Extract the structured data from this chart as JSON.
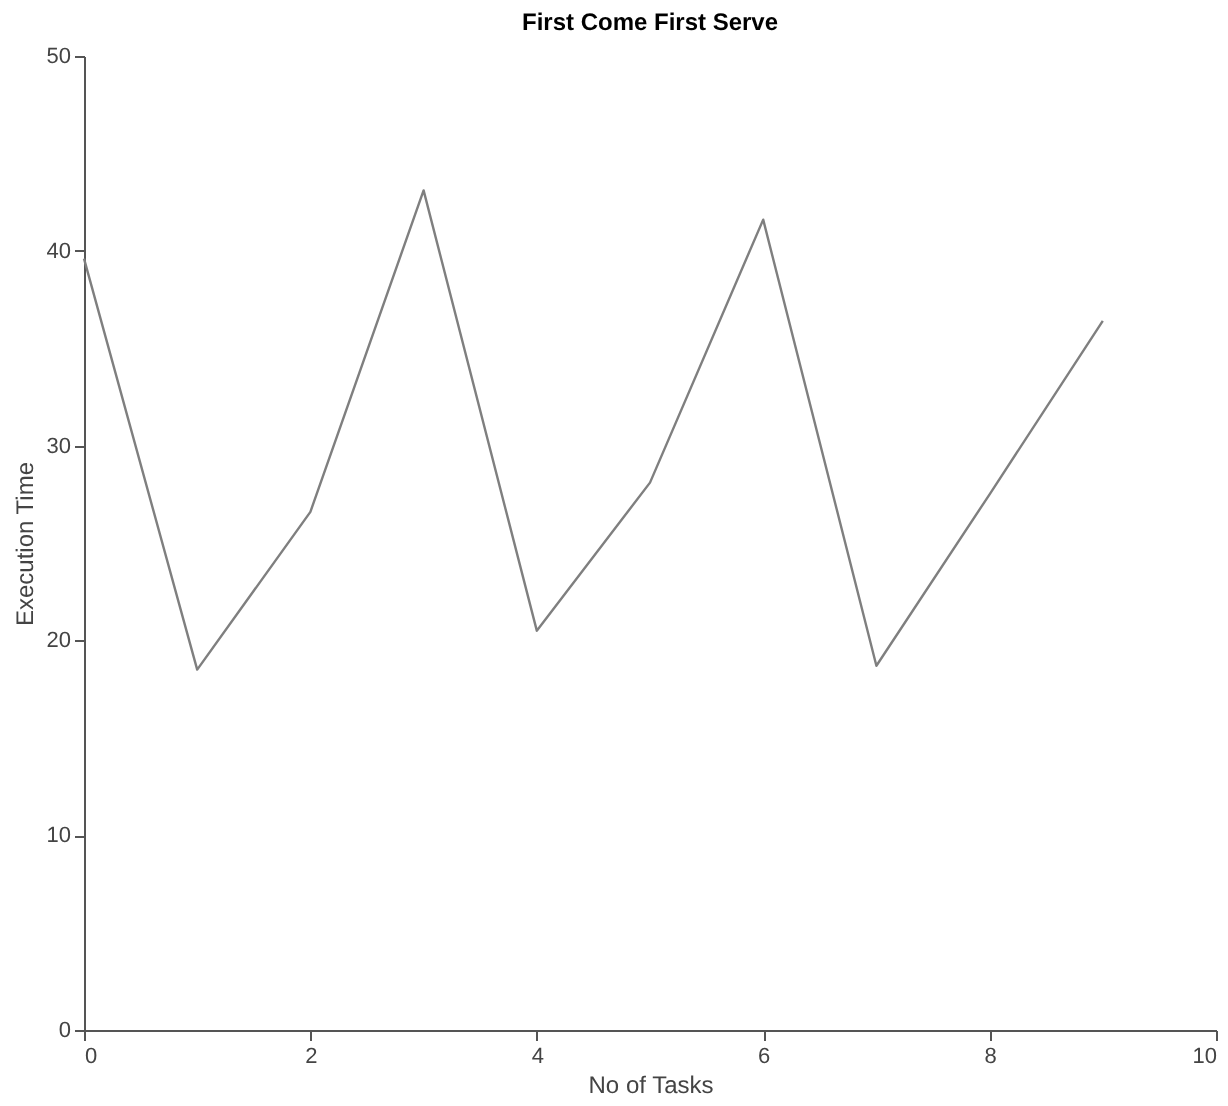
{
  "chart_data": {
    "type": "line",
    "title": "First Come First Serve",
    "xlabel": "No of Tasks",
    "ylabel": "Execution Time",
    "x": [
      0,
      1,
      2,
      3,
      4,
      5,
      6,
      7,
      8,
      9
    ],
    "series": [
      {
        "color": "#7f7f7f",
        "values": [
          39.6,
          18.5,
          26.6,
          43.1,
          20.5,
          28.1,
          41.6,
          18.7,
          27.5,
          36.4
        ]
      }
    ],
    "xlim": [
      0,
      10
    ],
    "xticks": [
      0,
      2,
      4,
      6,
      8,
      10
    ],
    "ylim": [
      0,
      50
    ],
    "yticks": [
      0,
      10,
      20,
      30,
      40,
      50
    ],
    "grid": false,
    "marker": "none",
    "line_style": "solid"
  }
}
